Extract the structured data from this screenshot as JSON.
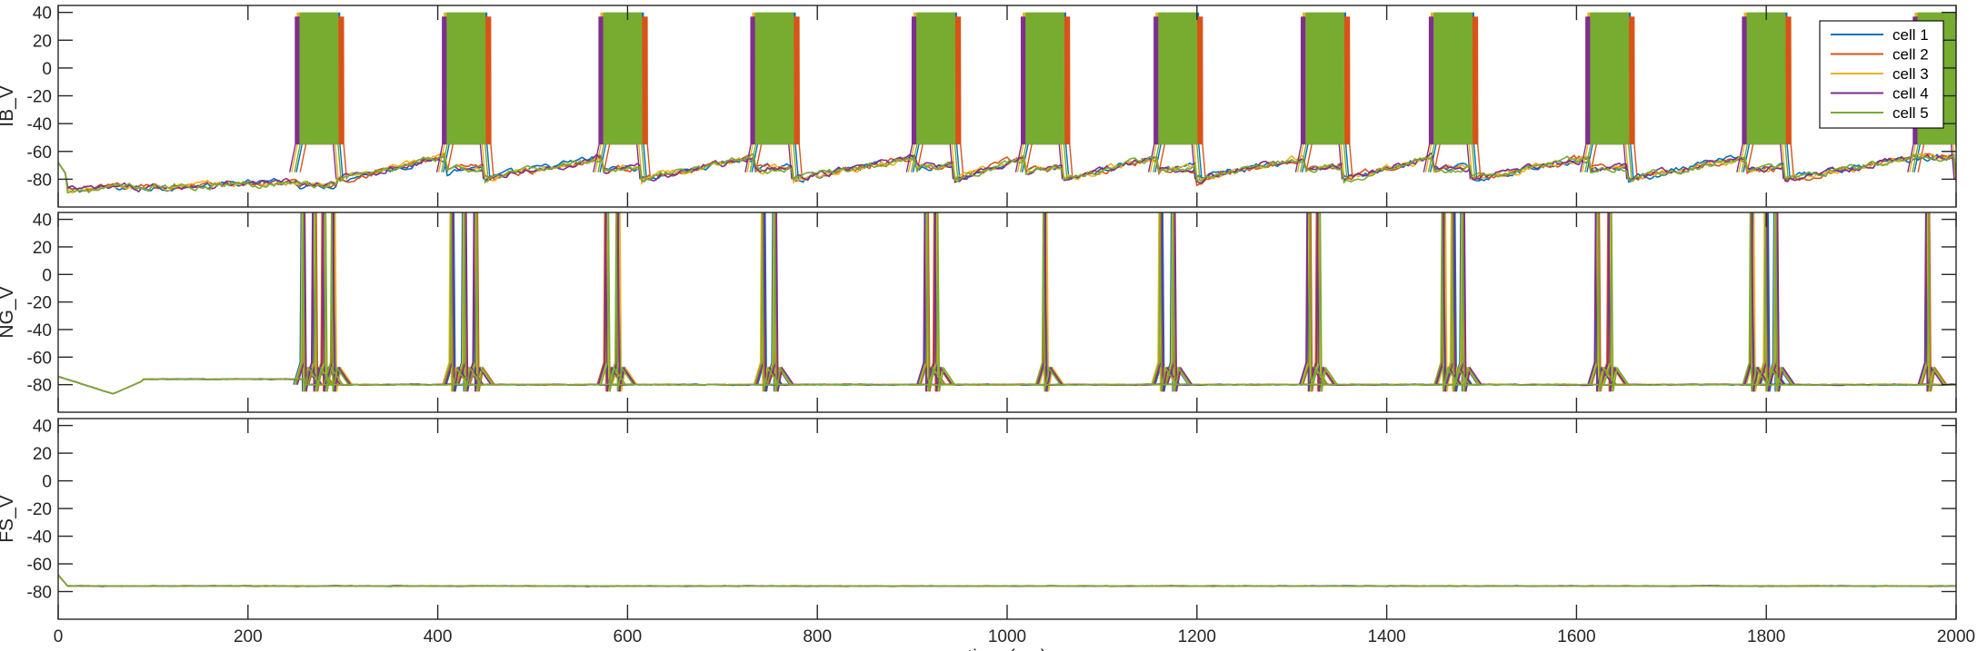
{
  "chart_data": [
    {
      "type": "line",
      "ylabel": "IB_V",
      "xlabel": "",
      "xlim": [
        0,
        2000
      ],
      "ylim": [
        -100,
        45
      ],
      "yticks": [
        -80,
        -60,
        -40,
        -20,
        0,
        20,
        40
      ],
      "xticks": [
        0,
        200,
        400,
        600,
        800,
        1000,
        1200,
        1400,
        1600,
        1800,
        2000
      ],
      "legend": {
        "placement": "top-right",
        "entries": [
          "cell 1",
          "cell 2",
          "cell 3",
          "cell 4",
          "cell 5"
        ]
      },
      "baseline_mV": -88,
      "burst_onsets_ms": [
        255,
        410,
        575,
        735,
        905,
        1020,
        1160,
        1315,
        1450,
        1615,
        1780,
        1960
      ],
      "burst_duration_ms": 40,
      "burst_peak_mV": 40,
      "burst_trough_mV": -55,
      "series": [
        {
          "name": "cell 1",
          "offset_ms": 2
        },
        {
          "name": "cell 2",
          "offset_ms": 6
        },
        {
          "name": "cell 3",
          "offset_ms": -3
        },
        {
          "name": "cell 4",
          "offset_ms": -5
        },
        {
          "name": "cell 5",
          "offset_ms": 0
        }
      ]
    },
    {
      "type": "line",
      "ylabel": "NG_V",
      "xlabel": "",
      "xlim": [
        0,
        2000
      ],
      "ylim": [
        -100,
        45
      ],
      "yticks": [
        -80,
        -60,
        -40,
        -20,
        0,
        20,
        40
      ],
      "xticks": [
        0,
        200,
        400,
        600,
        800,
        1000,
        1200,
        1400,
        1600,
        1800,
        2000
      ],
      "baseline_mV": -80,
      "spike_peak_mV": 45,
      "spike_times_ms": [
        258,
        270,
        280,
        290,
        415,
        428,
        440,
        578,
        590,
        743,
        755,
        915,
        925,
        1040,
        1162,
        1175,
        1318,
        1328,
        1460,
        1470,
        1480,
        1622,
        1635,
        1785,
        1800,
        1810,
        1970
      ],
      "series": [
        {
          "name": "cell 1"
        },
        {
          "name": "cell 2"
        },
        {
          "name": "cell 3"
        },
        {
          "name": "cell 4"
        },
        {
          "name": "cell 5"
        }
      ]
    },
    {
      "type": "line",
      "ylabel": "FS_V",
      "xlabel": "time (ms)",
      "xlim": [
        0,
        2000
      ],
      "ylim": [
        -100,
        45
      ],
      "yticks": [
        -80,
        -60,
        -40,
        -20,
        0,
        20,
        40
      ],
      "xticks": [
        0,
        200,
        400,
        600,
        800,
        1000,
        1200,
        1400,
        1600,
        1800,
        2000
      ],
      "baseline_mV": -76,
      "series": [
        {
          "name": "cell 1"
        },
        {
          "name": "cell 2"
        },
        {
          "name": "cell 3"
        },
        {
          "name": "cell 4"
        },
        {
          "name": "cell 5"
        }
      ]
    }
  ],
  "colors": {
    "cell 1": "#0072BD",
    "cell 2": "#D95319",
    "cell 3": "#EDB120",
    "cell 4": "#7E2F8E",
    "cell 5": "#77AC30",
    "axis": "#262626"
  }
}
